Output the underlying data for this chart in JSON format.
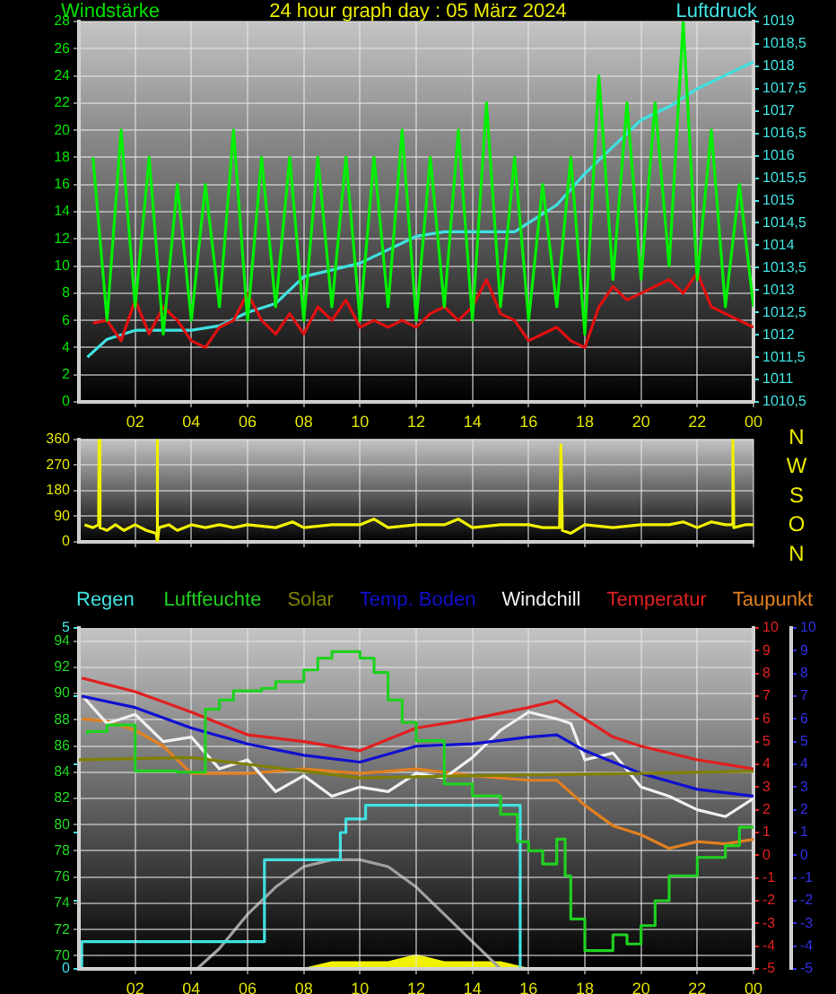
{
  "chart_data": [
    {
      "type": "line",
      "title": "24 hour graph day : 05 März 2024",
      "ylabel": "Windstärke",
      "y2label": "Luftdruck",
      "x": [
        "2024-03-05T00:30",
        "2024-03-05T01:00",
        "2024-03-05T01:30",
        "2024-03-05T02:00",
        "2024-03-05T02:30",
        "2024-03-05T03:00",
        "2024-03-05T03:30",
        "2024-03-05T04:00",
        "2024-03-05T04:30",
        "2024-03-05T05:00",
        "2024-03-05T05:30",
        "2024-03-05T06:00",
        "2024-03-05T06:30",
        "2024-03-05T07:00",
        "2024-03-05T07:30",
        "2024-03-05T08:00",
        "2024-03-05T08:30",
        "2024-03-05T09:00",
        "2024-03-05T09:30",
        "2024-03-05T10:00",
        "2024-03-05T10:30",
        "2024-03-05T11:00",
        "2024-03-05T11:30",
        "2024-03-05T12:00",
        "2024-03-05T12:30",
        "2024-03-05T13:00",
        "2024-03-05T13:30",
        "2024-03-05T14:00",
        "2024-03-05T14:30",
        "2024-03-05T15:00",
        "2024-03-05T15:30",
        "2024-03-05T16:00",
        "2024-03-05T16:30",
        "2024-03-05T17:00",
        "2024-03-05T17:30",
        "2024-03-05T18:00",
        "2024-03-05T18:30",
        "2024-03-05T19:00",
        "2024-03-05T19:30",
        "2024-03-05T20:00",
        "2024-03-05T20:30",
        "2024-03-05T21:00",
        "2024-03-05T21:30",
        "2024-03-05T22:00",
        "2024-03-05T22:30",
        "2024-03-05T23:00",
        "2024-03-05T23:30",
        "2024-03-06T00:00"
      ],
      "series": [
        {
          "color": "#00f000",
          "values": [
            18,
            6,
            20,
            7,
            18,
            5,
            16,
            6,
            16,
            7,
            20,
            6,
            18,
            7,
            18,
            6,
            18,
            7,
            18,
            6,
            18,
            7,
            20,
            6,
            18,
            7,
            20,
            6,
            22,
            7,
            18,
            6,
            16,
            7,
            18,
            5,
            24,
            9,
            22,
            9,
            22,
            10,
            28,
            9,
            20,
            7,
            16,
            7
          ]
        },
        {
          "color": "#e01010",
          "values": [
            5.8,
            6,
            4.5,
            7.5,
            5,
            7,
            6,
            4.5,
            4,
            5.5,
            6,
            8,
            6,
            5,
            6.5,
            5,
            7,
            6,
            7.5,
            5.5,
            6,
            5.5,
            6,
            5.5,
            6.5,
            7,
            6,
            7,
            9,
            6.5,
            6,
            4.5,
            5,
            5.5,
            4.5,
            4,
            7,
            8.5,
            7.5,
            8,
            8.5,
            9,
            8,
            9.5,
            7,
            6.5,
            6,
            5.5
          ]
        },
        {
          "color": "#40e0e0",
          "axis": "y2",
          "x": [
            "2024-03-05T00:18",
            "2024-03-05T01:00",
            "2024-03-05T02:00",
            "2024-03-05T04:00",
            "2024-03-05T05:00",
            "2024-03-05T06:00",
            "2024-03-05T07:00",
            "2024-03-05T08:00",
            "2024-03-05T10:00",
            "2024-03-05T11:00",
            "2024-03-05T12:00",
            "2024-03-05T13:00",
            "2024-03-05T14:00",
            "2024-03-05T15:30",
            "2024-03-05T16:00",
            "2024-03-05T17:00",
            "2024-03-05T18:00",
            "2024-03-05T19:00",
            "2024-03-05T20:00",
            "2024-03-05T21:00",
            "2024-03-05T22:00",
            "2024-03-05T23:00",
            "2024-03-06T00:00"
          ],
          "values": [
            1011.5,
            1011.9,
            1012.1,
            1012.1,
            1012.2,
            1012.5,
            1012.7,
            1013.3,
            1013.6,
            1013.9,
            1014.2,
            1014.3,
            1014.3,
            1014.3,
            1014.5,
            1014.9,
            1015.6,
            1016.2,
            1016.8,
            1017.1,
            1017.5,
            1017.8,
            1018.1
          ]
        }
      ],
      "xlim": [
        "2024-03-05T00:00",
        "2024-03-06T00:00"
      ],
      "xticks": [
        {
          "value": "2024-03-05T02:00",
          "label": "02"
        },
        {
          "value": "2024-03-05T04:00",
          "label": "04"
        },
        {
          "value": "2024-03-05T06:00",
          "label": "06"
        },
        {
          "value": "2024-03-05T08:00",
          "label": "08"
        },
        {
          "value": "2024-03-05T10:00",
          "label": "10"
        },
        {
          "value": "2024-03-05T12:00",
          "label": "12"
        },
        {
          "value": "2024-03-05T14:00",
          "label": "14"
        },
        {
          "value": "2024-03-05T16:00",
          "label": "16"
        },
        {
          "value": "2024-03-05T18:00",
          "label": "18"
        },
        {
          "value": "2024-03-05T20:00",
          "label": "20"
        },
        {
          "value": "2024-03-05T22:00",
          "label": "22"
        },
        {
          "value": "2024-03-06T00:00",
          "label": "00"
        }
      ],
      "ylim": [
        0,
        28
      ],
      "yticks": [
        0,
        2,
        4,
        6,
        8,
        10,
        12,
        14,
        16,
        18,
        20,
        22,
        24,
        26,
        28
      ],
      "y2lim": [
        1010.5,
        1019
      ],
      "y2ticks": [
        {
          "value": 1010.5,
          "label": "1010,5"
        },
        1011,
        {
          "value": 1011.5,
          "label": "1011,5"
        },
        1012,
        {
          "value": 1012.5,
          "label": "1012,5"
        },
        1013,
        {
          "value": 1013.5,
          "label": "1013,5"
        },
        1014,
        {
          "value": 1014.5,
          "label": "1014,5"
        },
        1015,
        {
          "value": 1015.5,
          "label": "1015,5"
        },
        1016,
        {
          "value": 1016.5,
          "label": "1016,5"
        },
        1017,
        {
          "value": 1017.5,
          "label": "1017,5"
        },
        1018,
        {
          "value": 1018.5,
          "label": "1018,5"
        },
        1019
      ],
      "grid": true
    },
    {
      "type": "line",
      "annotations": [
        "N",
        "W",
        "S",
        "O",
        "N"
      ],
      "series": [
        {
          "color": "#f0f000",
          "x": [
            "2024-03-05T00:12",
            "2024-03-05T00:30",
            "2024-03-05T00:42",
            "2024-03-05T00:43",
            "2024-03-05T00:45",
            "2024-03-05T01:00",
            "2024-03-05T01:18",
            "2024-03-05T01:36",
            "2024-03-05T02:00",
            "2024-03-05T02:24",
            "2024-03-05T02:45",
            "2024-03-05T02:47",
            "2024-03-05T02:48",
            "2024-03-05T02:51",
            "2024-03-05T03:12",
            "2024-03-05T03:30",
            "2024-03-05T04:00",
            "2024-03-05T04:30",
            "2024-03-05T05:00",
            "2024-03-05T05:30",
            "2024-03-05T06:00",
            "2024-03-05T07:00",
            "2024-03-05T07:36",
            "2024-03-05T08:00",
            "2024-03-05T09:00",
            "2024-03-05T10:00",
            "2024-03-05T10:30",
            "2024-03-05T11:00",
            "2024-03-05T12:00",
            "2024-03-05T13:00",
            "2024-03-05T13:30",
            "2024-03-05T14:00",
            "2024-03-05T15:00",
            "2024-03-05T16:00",
            "2024-03-05T16:30",
            "2024-03-05T17:06",
            "2024-03-05T17:09",
            "2024-03-05T17:12",
            "2024-03-05T17:30",
            "2024-03-05T18:00",
            "2024-03-05T19:00",
            "2024-03-05T20:00",
            "2024-03-05T21:00",
            "2024-03-05T21:30",
            "2024-03-05T22:00",
            "2024-03-05T22:30",
            "2024-03-05T23:00",
            "2024-03-05T23:15",
            "2024-03-05T23:16",
            "2024-03-05T23:18",
            "2024-03-05T23:42",
            "2024-03-06T00:00"
          ],
          "values": [
            60,
            50,
            60,
            360,
            50,
            40,
            60,
            40,
            60,
            40,
            30,
            360,
            0,
            50,
            60,
            40,
            60,
            50,
            60,
            50,
            60,
            50,
            70,
            50,
            60,
            60,
            80,
            50,
            60,
            60,
            80,
            50,
            60,
            60,
            50,
            50,
            340,
            40,
            30,
            60,
            50,
            60,
            60,
            70,
            50,
            70,
            60,
            60,
            360,
            50,
            60,
            60
          ]
        }
      ],
      "xlim": [
        "2024-03-05T00:00",
        "2024-03-06T00:00"
      ],
      "xticks": [
        {
          "value": "2024-03-05T02:00",
          "label": null
        },
        {
          "value": "2024-03-05T04:00",
          "label": null
        },
        {
          "value": "2024-03-05T06:00",
          "label": null
        },
        {
          "value": "2024-03-05T08:00",
          "label": null
        },
        {
          "value": "2024-03-05T10:00",
          "label": null
        },
        {
          "value": "2024-03-05T12:00",
          "label": null
        },
        {
          "value": "2024-03-05T14:00",
          "label": null
        },
        {
          "value": "2024-03-05T16:00",
          "label": null
        },
        {
          "value": "2024-03-05T18:00",
          "label": null
        },
        {
          "value": "2024-03-05T20:00",
          "label": null
        },
        {
          "value": "2024-03-05T22:00",
          "label": null
        },
        {
          "value": "2024-03-06T00:00",
          "label": null
        }
      ],
      "ylim": [
        0,
        360
      ],
      "yticks": [
        0,
        90,
        180,
        270,
        360
      ],
      "tick_labels": "y",
      "grid": true
    },
    {
      "type": "line",
      "legend": "top left",
      "series": [
        {
          "name": "Regen",
          "type": "step",
          "color": "#40e0e0",
          "x": [
            "2024-03-05T00:06",
            "2024-03-05T06:36",
            "2024-03-05T09:18",
            "2024-03-05T09:30",
            "2024-03-05T10:12",
            "2024-03-05T15:42",
            "2024-03-05T23:57",
            "2024-03-06T00:00"
          ],
          "values": [
            0,
            0.4,
            1.6,
            2.0,
            2.2,
            2.4,
            0,
            0
          ]
        },
        {
          "color": "#a0a0a0",
          "x": [
            "2024-03-05T04:12",
            "2024-03-05T05:00",
            "2024-03-05T06:00",
            "2024-03-05T07:00",
            "2024-03-05T08:00",
            "2024-03-05T09:00",
            "2024-03-05T09:30",
            "2024-03-05T10:00",
            "2024-03-05T11:00",
            "2024-03-05T12:00",
            "2024-03-05T13:00",
            "2024-03-05T14:00",
            "2024-03-05T15:00"
          ],
          "values": [
            0,
            0.3,
            0.8,
            1.2,
            1.5,
            1.6,
            1.6,
            1.6,
            1.5,
            1.2,
            0.8,
            0.4,
            0
          ]
        },
        {
          "type": "area",
          "color": "#f0f000",
          "x": [
            "2024-03-05T00:00",
            "2024-03-05T08:00",
            "2024-03-05T09:00",
            "2024-03-05T10:00",
            "2024-03-05T11:00",
            "2024-03-05T12:00",
            "2024-03-05T13:00",
            "2024-03-05T14:00",
            "2024-03-05T15:00",
            "2024-03-05T16:00",
            "2024-03-05T17:00",
            "2024-03-05T18:00",
            "2024-03-06T00:00"
          ],
          "values": [
            0,
            0,
            0.1,
            0.1,
            0.1,
            0.2,
            0.1,
            0.1,
            0.1,
            0,
            0,
            0,
            0
          ]
        }
      ],
      "xlim": [
        "2024-03-05T00:00",
        "2024-03-06T00:00"
      ],
      "ylim": [
        0,
        5
      ],
      "yticks": [
        0,
        {
          "value": 1,
          "label": null
        },
        {
          "value": 2,
          "label": null
        },
        {
          "value": 3,
          "label": null
        },
        {
          "value": 4,
          "label": null
        },
        5
      ],
      "tick_labels": "y"
    },
    {
      "type": "line",
      "legend": "top right",
      "series": [
        {
          "name": "Luftfeuchte",
          "type": "step",
          "color": "#20d020",
          "x": [
            "2024-03-05T00:18",
            "2024-03-05T01:00",
            "2024-03-05T01:18",
            "2024-03-05T02:00",
            "2024-03-05T03:30",
            "2024-03-05T04:30",
            "2024-03-05T05:00",
            "2024-03-05T05:30",
            "2024-03-05T06:30",
            "2024-03-05T07:00",
            "2024-03-05T08:00",
            "2024-03-05T08:30",
            "2024-03-05T09:00",
            "2024-03-05T10:00",
            "2024-03-05T10:30",
            "2024-03-05T11:00",
            "2024-03-05T11:30",
            "2024-03-05T12:00",
            "2024-03-05T13:00",
            "2024-03-05T14:00",
            "2024-03-05T15:00",
            "2024-03-05T15:36",
            "2024-03-05T16:00",
            "2024-03-05T16:30",
            "2024-03-05T17:00",
            "2024-03-05T17:18",
            "2024-03-05T17:30",
            "2024-03-05T18:00",
            "2024-03-05T19:00",
            "2024-03-05T19:30",
            "2024-03-05T20:00",
            "2024-03-05T20:30",
            "2024-03-05T21:00",
            "2024-03-05T22:00",
            "2024-03-05T23:00",
            "2024-03-05T23:30",
            "2024-03-06T00:00"
          ],
          "values": [
            86.9,
            87.1,
            87.6,
            87.6,
            84.1,
            84,
            88.8,
            89.5,
            90.2,
            90.4,
            90.9,
            91.8,
            92.7,
            93.2,
            92.7,
            91.6,
            89.5,
            87.8,
            86.4,
            83.1,
            82.2,
            80.8,
            78.7,
            78,
            77,
            78.9,
            76.1,
            72.8,
            70.4,
            71.6,
            70.9,
            72.3,
            74.2,
            76.1,
            77.5,
            78.4,
            79.8
          ]
        },
        {
          "name": "Solar",
          "color": "#808000",
          "axis": "y2",
          "x": [
            "2024-03-05T00:00",
            "2024-03-05T04:00",
            "2024-03-05T06:00",
            "2024-03-05T10:00",
            "2024-03-05T14:00",
            "2024-03-05T20:00",
            "2024-03-06T00:00"
          ],
          "values": [
            4.2,
            4.3,
            4.0,
            3.4,
            3.5,
            3.6,
            3.7
          ]
        },
        {
          "name": "Temp. Boden",
          "color": "#1010d0",
          "axis": "y3",
          "x": [
            "2024-03-05T00:06",
            "2024-03-05T02:00",
            "2024-03-05T04:00",
            "2024-03-05T06:00",
            "2024-03-05T08:00",
            "2024-03-05T10:00",
            "2024-03-05T12:00",
            "2024-03-05T14:00",
            "2024-03-05T16:00",
            "2024-03-05T17:00",
            "2024-03-05T18:00",
            "2024-03-05T20:00",
            "2024-03-05T22:00",
            "2024-03-06T00:00"
          ],
          "values": [
            7.0,
            6.5,
            5.6,
            4.9,
            4.4,
            4.1,
            4.8,
            4.9,
            5.2,
            5.3,
            4.6,
            3.6,
            2.9,
            2.6
          ]
        },
        {
          "name": "Windchill",
          "color": "#f0f0f0",
          "axis": "y2",
          "x": [
            "2024-03-05T00:12",
            "2024-03-05T01:00",
            "2024-03-05T02:00",
            "2024-03-05T03:00",
            "2024-03-05T04:00",
            "2024-03-05T05:00",
            "2024-03-05T06:00",
            "2024-03-05T07:00",
            "2024-03-05T08:00",
            "2024-03-05T09:00",
            "2024-03-05T10:00",
            "2024-03-05T11:00",
            "2024-03-05T12:00",
            "2024-03-05T13:00",
            "2024-03-05T14:00",
            "2024-03-05T15:00",
            "2024-03-05T16:00",
            "2024-03-05T17:00",
            "2024-03-05T17:30",
            "2024-03-05T18:00",
            "2024-03-05T19:00",
            "2024-03-05T20:00",
            "2024-03-05T21:00",
            "2024-03-05T22:00",
            "2024-03-05T23:00",
            "2024-03-06T00:00"
          ],
          "values": [
            6.9,
            5.8,
            6.2,
            5.0,
            5.2,
            3.8,
            4.2,
            2.8,
            3.5,
            2.6,
            3.0,
            2.8,
            3.6,
            3.4,
            4.3,
            5.5,
            6.3,
            6.0,
            5.8,
            4.2,
            4.5,
            3.0,
            2.6,
            2.0,
            1.7,
            2.5
          ]
        },
        {
          "name": "Temperatur",
          "color": "#e02020",
          "axis": "y2",
          "x": [
            "2024-03-05T00:06",
            "2024-03-05T02:00",
            "2024-03-05T04:00",
            "2024-03-05T06:00",
            "2024-03-05T08:00",
            "2024-03-05T10:00",
            "2024-03-05T12:00",
            "2024-03-05T14:00",
            "2024-03-05T16:00",
            "2024-03-05T17:00",
            "2024-03-05T18:00",
            "2024-03-05T19:00",
            "2024-03-05T20:00",
            "2024-03-05T22:00",
            "2024-03-06T00:00"
          ],
          "values": [
            7.8,
            7.2,
            6.3,
            5.3,
            5.0,
            4.6,
            5.6,
            6.0,
            6.5,
            6.8,
            6.0,
            5.2,
            4.8,
            4.2,
            3.8
          ]
        },
        {
          "name": "Taupunkt",
          "color": "#e08020",
          "axis": "y2",
          "x": [
            "2024-03-05T00:06",
            "2024-03-05T01:00",
            "2024-03-05T02:00",
            "2024-03-05T03:00",
            "2024-03-05T04:00",
            "2024-03-05T05:00",
            "2024-03-05T06:00",
            "2024-03-05T08:00",
            "2024-03-05T10:00",
            "2024-03-05T12:00",
            "2024-03-05T14:00",
            "2024-03-05T16:00",
            "2024-03-05T17:00",
            "2024-03-05T18:00",
            "2024-03-05T19:00",
            "2024-03-05T20:00",
            "2024-03-05T21:00",
            "2024-03-05T22:00",
            "2024-03-05T23:00",
            "2024-03-06T00:00"
          ],
          "values": [
            6.0,
            5.9,
            5.5,
            4.8,
            3.6,
            3.6,
            3.6,
            3.8,
            3.6,
            3.8,
            3.5,
            3.3,
            3.3,
            2.2,
            1.3,
            0.9,
            0.3,
            0.6,
            0.5,
            0.7
          ]
        }
      ],
      "xlim": [
        "2024-03-05T00:00",
        "2024-03-06T00:00"
      ],
      "xticks": [
        {
          "value": "2024-03-05T02:00",
          "label": "02"
        },
        {
          "value": "2024-03-05T04:00",
          "label": "04"
        },
        {
          "value": "2024-03-05T06:00",
          "label": "06"
        },
        {
          "value": "2024-03-05T08:00",
          "label": "08"
        },
        {
          "value": "2024-03-05T10:00",
          "label": "10"
        },
        {
          "value": "2024-03-05T12:00",
          "label": "12"
        },
        {
          "value": "2024-03-05T14:00",
          "label": "14"
        },
        {
          "value": "2024-03-05T16:00",
          "label": "16"
        },
        {
          "value": "2024-03-05T18:00",
          "label": "18"
        },
        {
          "value": "2024-03-05T20:00",
          "label": "20"
        },
        {
          "value": "2024-03-05T22:00",
          "label": "22"
        },
        {
          "value": "2024-03-06T00:00",
          "label": "00"
        }
      ],
      "ylim": [
        69,
        95
      ],
      "yticks": [
        70,
        72,
        74,
        76,
        78,
        80,
        82,
        84,
        86,
        88,
        90,
        92,
        94
      ],
      "y2lim": [
        -5,
        10
      ],
      "y2ticks": [
        -5,
        -4,
        -3,
        -2,
        -1,
        0,
        1,
        2,
        3,
        4,
        5,
        6,
        7,
        8,
        9,
        10
      ],
      "y3lim": [
        -5,
        10
      ],
      "y3ticks": [
        -5,
        -4,
        -3,
        -2,
        -1,
        0,
        1,
        2,
        3,
        4,
        5,
        6,
        7,
        8,
        9,
        10
      ],
      "grid": true
    }
  ]
}
